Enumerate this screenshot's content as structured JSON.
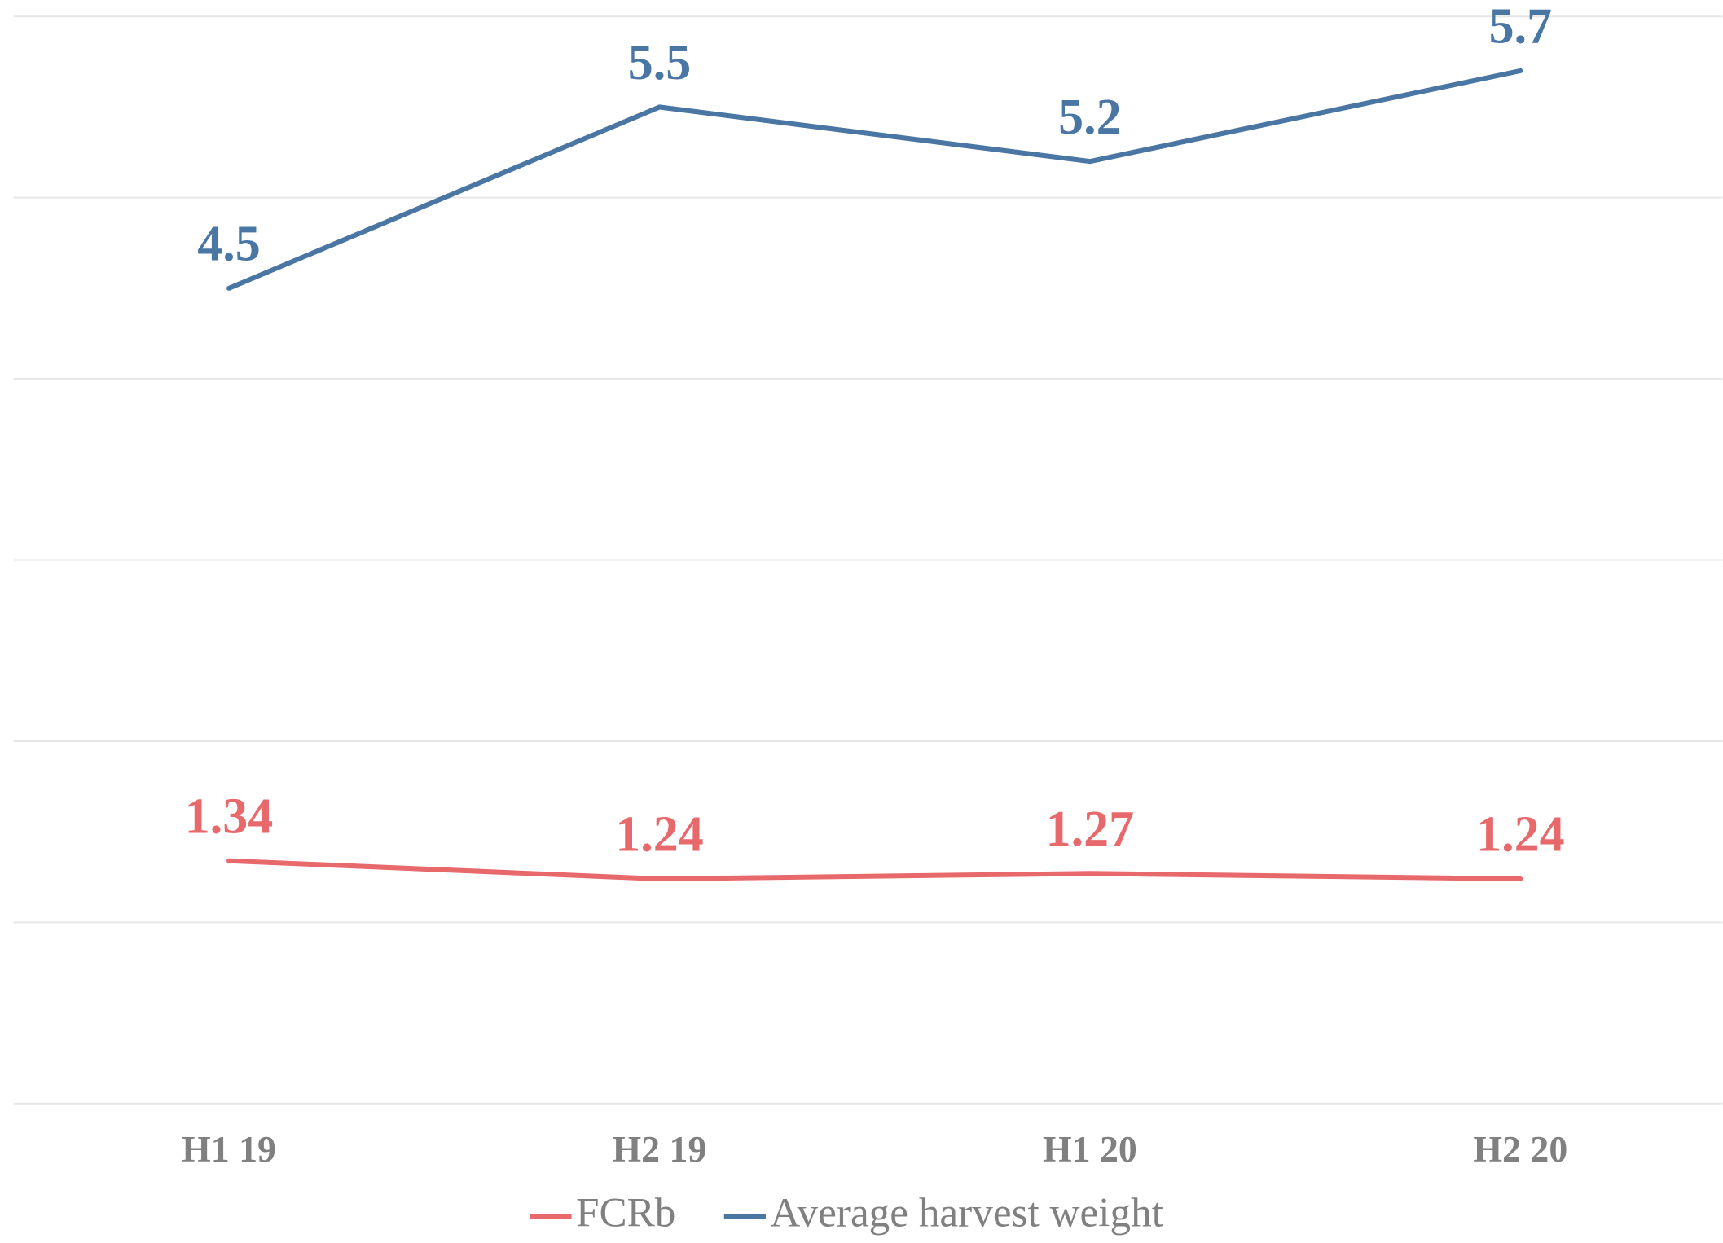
{
  "chart_data": {
    "type": "line",
    "categories": [
      "H1 19",
      "H2 19",
      "H1 20",
      "H2 20"
    ],
    "series": [
      {
        "name": "FCRb",
        "color": "#e8696b",
        "values": [
          1.34,
          1.24,
          1.27,
          1.24
        ]
      },
      {
        "name": "Average harvest weight",
        "color": "#4a76a3",
        "values": [
          4.5,
          5.5,
          5.2,
          5.7
        ]
      }
    ],
    "ylim": [
      0,
      6
    ],
    "yticks": [
      0,
      1,
      2,
      3,
      4,
      5,
      6
    ],
    "grid": true,
    "legend": "bottom"
  }
}
